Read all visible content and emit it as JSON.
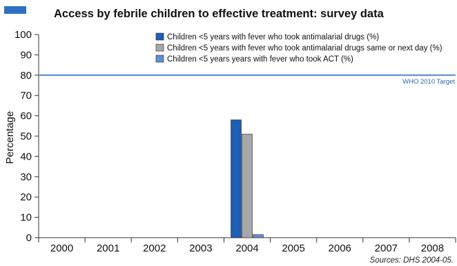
{
  "chart_data": {
    "type": "bar",
    "title": "Access by febrile children to effective treatment: survey data",
    "ylabel": "Percentage",
    "xlabel": "",
    "ylim": [
      0,
      100
    ],
    "yticks": [
      0,
      10,
      20,
      30,
      40,
      50,
      60,
      70,
      80,
      90,
      100
    ],
    "grid": false,
    "legend_position": "top-right",
    "categories": [
      "2000",
      "2001",
      "2002",
      "2003",
      "2004",
      "2005",
      "2006",
      "2007",
      "2008"
    ],
    "series": [
      {
        "name": "Children <5 years with fever who took antimalarial drugs (%)",
        "color": "#1f5fb4",
        "values": [
          null,
          null,
          null,
          null,
          58,
          null,
          null,
          null,
          null
        ]
      },
      {
        "name": "Children <5 years with fever who took antimalarial drugs same or next day (%)",
        "color": "#a6a8ab",
        "values": [
          null,
          null,
          null,
          null,
          51,
          null,
          null,
          null,
          null
        ]
      },
      {
        "name": "Children <5 years years with fever who took ACT (%)",
        "color": "#5f8fd0",
        "values": [
          null,
          null,
          null,
          null,
          1.5,
          null,
          null,
          null,
          null
        ]
      }
    ],
    "reference_line": {
      "label": "WHO 2010 Target",
      "value": 80,
      "color": "#4f86d9"
    },
    "source": "Sources: DHS 2004-05.",
    "title_marker_color": "#2f6fc4"
  }
}
